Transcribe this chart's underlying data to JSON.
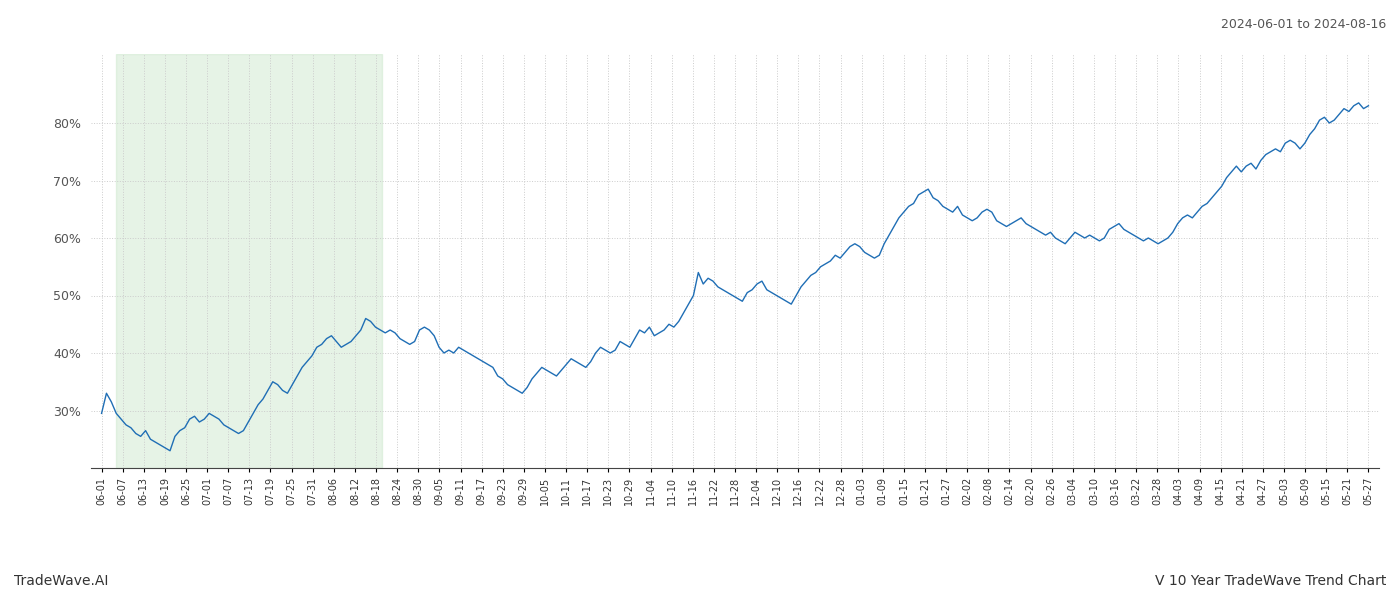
{
  "title_right": "2024-06-01 to 2024-08-16",
  "footer_left": "TradeWave.AI",
  "footer_right": "V 10 Year TradeWave Trend Chart",
  "line_color": "#1f6eb5",
  "highlight_color": "#c8e6c9",
  "highlight_alpha": 0.45,
  "background_color": "#ffffff",
  "grid_color": "#cccccc",
  "grid_style": ":",
  "ylim": [
    20,
    92
  ],
  "yticks": [
    30,
    40,
    50,
    60,
    70,
    80
  ],
  "highlight_start_label": "06-07",
  "highlight_end_label": "08-18",
  "date_labels": [
    "06-01",
    "06-07",
    "06-13",
    "06-19",
    "06-25",
    "07-01",
    "07-07",
    "07-13",
    "07-19",
    "07-25",
    "07-31",
    "08-06",
    "08-12",
    "08-18",
    "08-24",
    "08-30",
    "09-05",
    "09-11",
    "09-17",
    "09-23",
    "09-29",
    "10-05",
    "10-11",
    "10-17",
    "10-23",
    "10-29",
    "11-04",
    "11-10",
    "11-16",
    "11-22",
    "11-28",
    "12-04",
    "12-10",
    "12-16",
    "12-22",
    "12-28",
    "01-03",
    "01-09",
    "01-15",
    "01-21",
    "01-27",
    "02-02",
    "02-08",
    "02-14",
    "02-20",
    "02-26",
    "03-04",
    "03-10",
    "03-16",
    "03-22",
    "03-28",
    "04-03",
    "04-09",
    "04-15",
    "04-21",
    "04-27",
    "05-03",
    "05-09",
    "05-15",
    "05-21",
    "05-27"
  ],
  "values": [
    29.5,
    33.0,
    31.5,
    29.5,
    28.5,
    27.5,
    27.0,
    26.0,
    25.5,
    26.5,
    25.0,
    24.5,
    24.0,
    23.5,
    23.0,
    25.5,
    26.5,
    27.0,
    28.5,
    29.0,
    28.0,
    28.5,
    29.5,
    29.0,
    28.5,
    27.5,
    27.0,
    26.5,
    26.0,
    26.5,
    28.0,
    29.5,
    31.0,
    32.0,
    33.5,
    35.0,
    34.5,
    33.5,
    33.0,
    34.5,
    36.0,
    37.5,
    38.5,
    39.5,
    41.0,
    41.5,
    42.5,
    43.0,
    42.0,
    41.0,
    41.5,
    42.0,
    43.0,
    44.0,
    46.0,
    45.5,
    44.5,
    44.0,
    43.5,
    44.0,
    43.5,
    42.5,
    42.0,
    41.5,
    42.0,
    44.0,
    44.5,
    44.0,
    43.0,
    41.0,
    40.0,
    40.5,
    40.0,
    41.0,
    40.5,
    40.0,
    39.5,
    39.0,
    38.5,
    38.0,
    37.5,
    36.0,
    35.5,
    34.5,
    34.0,
    33.5,
    33.0,
    34.0,
    35.5,
    36.5,
    37.5,
    37.0,
    36.5,
    36.0,
    37.0,
    38.0,
    39.0,
    38.5,
    38.0,
    37.5,
    38.5,
    40.0,
    41.0,
    40.5,
    40.0,
    40.5,
    42.0,
    41.5,
    41.0,
    42.5,
    44.0,
    43.5,
    44.5,
    43.0,
    43.5,
    44.0,
    45.0,
    44.5,
    45.5,
    47.0,
    48.5,
    50.0,
    54.0,
    52.0,
    53.0,
    52.5,
    51.5,
    51.0,
    50.5,
    50.0,
    49.5,
    49.0,
    50.5,
    51.0,
    52.0,
    52.5,
    51.0,
    50.5,
    50.0,
    49.5,
    49.0,
    48.5,
    50.0,
    51.5,
    52.5,
    53.5,
    54.0,
    55.0,
    55.5,
    56.0,
    57.0,
    56.5,
    57.5,
    58.5,
    59.0,
    58.5,
    57.5,
    57.0,
    56.5,
    57.0,
    59.0,
    60.5,
    62.0,
    63.5,
    64.5,
    65.5,
    66.0,
    67.5,
    68.0,
    68.5,
    67.0,
    66.5,
    65.5,
    65.0,
    64.5,
    65.5,
    64.0,
    63.5,
    63.0,
    63.5,
    64.5,
    65.0,
    64.5,
    63.0,
    62.5,
    62.0,
    62.5,
    63.0,
    63.5,
    62.5,
    62.0,
    61.5,
    61.0,
    60.5,
    61.0,
    60.0,
    59.5,
    59.0,
    60.0,
    61.0,
    60.5,
    60.0,
    60.5,
    60.0,
    59.5,
    60.0,
    61.5,
    62.0,
    62.5,
    61.5,
    61.0,
    60.5,
    60.0,
    59.5,
    60.0,
    59.5,
    59.0,
    59.5,
    60.0,
    61.0,
    62.5,
    63.5,
    64.0,
    63.5,
    64.5,
    65.5,
    66.0,
    67.0,
    68.0,
    69.0,
    70.5,
    71.5,
    72.5,
    71.5,
    72.5,
    73.0,
    72.0,
    73.5,
    74.5,
    75.0,
    75.5,
    75.0,
    76.5,
    77.0,
    76.5,
    75.5,
    76.5,
    78.0,
    79.0,
    80.5,
    81.0,
    80.0,
    80.5,
    81.5,
    82.5,
    82.0,
    83.0,
    83.5,
    82.5,
    83.0
  ]
}
